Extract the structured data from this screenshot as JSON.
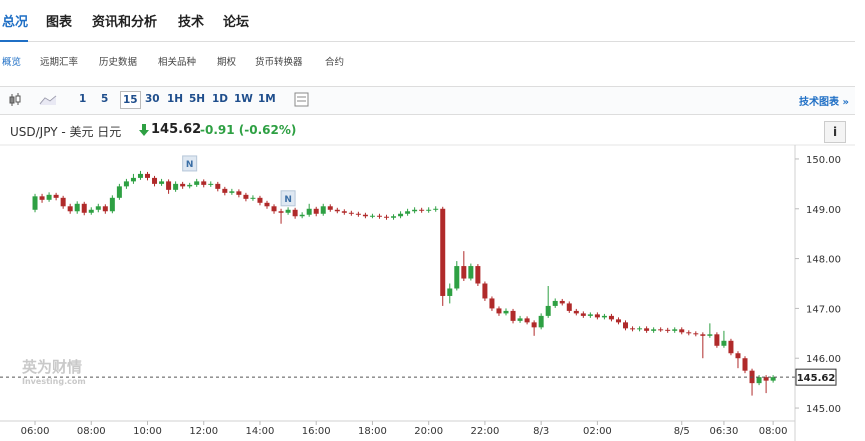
{
  "nav": {
    "tabs": [
      "总况",
      "图表",
      "资讯和分析",
      "技术",
      "论坛"
    ],
    "subtabs": [
      "概览",
      "远期汇率",
      "历史数据",
      "相关品种",
      "期权",
      "货币转换器",
      "合约"
    ]
  },
  "toolbar": {
    "intervals": [
      "1",
      "5",
      "15",
      "30",
      "1H",
      "5H",
      "1D",
      "1W",
      "1M"
    ],
    "link": "技术图表 »",
    "info": "i"
  },
  "quote": {
    "instrument": "USD/JPY - 美元 日元",
    "price": "145.62",
    "change": "-0.91 (-0.62%)"
  },
  "chart_data": {
    "type": "candlestick",
    "up_color": "#2ea043",
    "down_color": "#b02a2a",
    "xlim": [
      -3.56,
      107.4
    ],
    "ylim": [
      144.76,
      150.22
    ],
    "yticks": [
      {
        "value": 150,
        "label": "150.00"
      },
      {
        "value": 149,
        "label": "149.00"
      },
      {
        "value": 148,
        "label": "148.00"
      },
      {
        "value": 147,
        "label": "147.00"
      },
      {
        "value": 146,
        "label": "146.00"
      },
      {
        "value": 145,
        "label": "145.00"
      }
    ],
    "xticks": [
      {
        "value": 0,
        "label": "06:00"
      },
      {
        "value": 8,
        "label": "08:00"
      },
      {
        "value": 16,
        "label": "10:00"
      },
      {
        "value": 24,
        "label": "12:00"
      },
      {
        "value": 32,
        "label": "14:00"
      },
      {
        "value": 40,
        "label": "16:00"
      },
      {
        "value": 48,
        "label": "18:00"
      },
      {
        "value": 56,
        "label": "20:00"
      },
      {
        "value": 64,
        "label": "22:00"
      },
      {
        "value": 72,
        "label": "8/3"
      },
      {
        "value": 80,
        "label": "02:00"
      },
      {
        "value": 92,
        "label": "8/5"
      },
      {
        "value": 98,
        "label": "06:30"
      },
      {
        "value": 105,
        "label": "08:00"
      }
    ],
    "last_price": 145.62,
    "annotations": [
      "N",
      "N"
    ],
    "watermark": [
      "英为财情",
      "Investing.com"
    ],
    "candles": [
      [
        148.98,
        149.3,
        148.93,
        149.25
      ],
      [
        149.25,
        149.3,
        149.12,
        149.18
      ],
      [
        149.18,
        149.33,
        149.14,
        149.28
      ],
      [
        149.28,
        149.32,
        149.17,
        149.22
      ],
      [
        149.22,
        149.26,
        149.0,
        149.05
      ],
      [
        149.05,
        149.1,
        148.9,
        148.95
      ],
      [
        148.95,
        149.15,
        148.9,
        149.1
      ],
      [
        149.1,
        149.14,
        148.87,
        148.92
      ],
      [
        148.92,
        149.03,
        148.88,
        148.98
      ],
      [
        148.98,
        149.1,
        148.93,
        149.05
      ],
      [
        149.05,
        149.09,
        148.9,
        148.95
      ],
      [
        148.95,
        149.27,
        148.91,
        149.22
      ],
      [
        149.22,
        149.5,
        149.18,
        149.45
      ],
      [
        149.45,
        149.6,
        149.4,
        149.55
      ],
      [
        149.55,
        149.7,
        149.5,
        149.62
      ],
      [
        149.62,
        149.76,
        149.58,
        149.7
      ],
      [
        149.7,
        149.74,
        149.57,
        149.62
      ],
      [
        149.62,
        149.66,
        149.45,
        149.5
      ],
      [
        149.5,
        149.6,
        149.46,
        149.55
      ],
      [
        149.55,
        149.59,
        149.3,
        149.38
      ],
      [
        149.38,
        149.55,
        149.34,
        149.5
      ],
      [
        149.5,
        149.54,
        149.4,
        149.45
      ],
      [
        149.45,
        149.52,
        149.41,
        149.48
      ],
      [
        149.48,
        149.6,
        149.44,
        149.55
      ],
      [
        149.55,
        149.59,
        149.43,
        149.48
      ],
      [
        149.48,
        149.55,
        149.44,
        149.5
      ],
      [
        149.5,
        149.54,
        149.35,
        149.4
      ],
      [
        149.4,
        149.44,
        149.27,
        149.32
      ],
      [
        149.32,
        149.4,
        149.28,
        149.35
      ],
      [
        149.35,
        149.39,
        149.23,
        149.28
      ],
      [
        149.28,
        149.32,
        149.15,
        149.2
      ],
      [
        149.2,
        149.27,
        149.16,
        149.22
      ],
      [
        149.22,
        149.26,
        149.07,
        149.12
      ],
      [
        149.12,
        149.16,
        149.0,
        149.05
      ],
      [
        149.05,
        149.09,
        148.9,
        148.95
      ],
      [
        148.95,
        149.0,
        148.7,
        148.92
      ],
      [
        148.92,
        149.03,
        148.88,
        148.98
      ],
      [
        148.98,
        149.02,
        148.8,
        148.85
      ],
      [
        148.85,
        148.93,
        148.81,
        148.88
      ],
      [
        148.88,
        149.1,
        148.84,
        149.0
      ],
      [
        149.0,
        149.04,
        148.85,
        148.9
      ],
      [
        148.9,
        149.1,
        148.86,
        149.05
      ],
      [
        149.05,
        149.09,
        148.94,
        148.98
      ],
      [
        148.98,
        149.02,
        148.91,
        148.95
      ],
      [
        148.95,
        148.99,
        148.88,
        148.92
      ],
      [
        148.92,
        148.96,
        148.86,
        148.9
      ],
      [
        148.9,
        148.94,
        148.84,
        148.88
      ],
      [
        148.88,
        148.92,
        148.81,
        148.85
      ],
      [
        148.85,
        148.9,
        148.81,
        148.86
      ],
      [
        148.86,
        148.9,
        148.8,
        148.84
      ],
      [
        148.84,
        148.88,
        148.78,
        148.82
      ],
      [
        148.82,
        148.89,
        148.78,
        148.85
      ],
      [
        148.85,
        148.95,
        148.81,
        148.9
      ],
      [
        148.9,
        149.0,
        148.86,
        148.95
      ],
      [
        148.95,
        149.03,
        148.91,
        148.98
      ],
      [
        148.98,
        149.02,
        148.92,
        148.96
      ],
      [
        148.96,
        149.03,
        148.92,
        148.98
      ],
      [
        148.98,
        149.05,
        148.94,
        149.0
      ],
      [
        149.0,
        149.04,
        147.05,
        147.25
      ],
      [
        147.25,
        147.5,
        147.1,
        147.4
      ],
      [
        147.4,
        147.95,
        147.36,
        147.85
      ],
      [
        147.85,
        148.15,
        147.55,
        147.6
      ],
      [
        147.6,
        147.9,
        147.56,
        147.85
      ],
      [
        147.85,
        147.89,
        147.45,
        147.5
      ],
      [
        147.5,
        147.54,
        147.15,
        147.2
      ],
      [
        147.2,
        147.24,
        146.95,
        147.0
      ],
      [
        147.0,
        147.04,
        146.85,
        146.9
      ],
      [
        146.9,
        147.0,
        146.86,
        146.95
      ],
      [
        146.95,
        146.99,
        146.7,
        146.75
      ],
      [
        146.75,
        146.85,
        146.71,
        146.8
      ],
      [
        146.8,
        146.84,
        146.68,
        146.72
      ],
      [
        146.72,
        146.76,
        146.45,
        146.62
      ],
      [
        146.62,
        146.9,
        146.58,
        146.85
      ],
      [
        146.85,
        147.45,
        146.81,
        147.05
      ],
      [
        147.05,
        147.2,
        147.01,
        147.15
      ],
      [
        147.15,
        147.19,
        147.06,
        147.1
      ],
      [
        147.1,
        147.14,
        146.91,
        146.95
      ],
      [
        146.95,
        146.99,
        146.86,
        146.9
      ],
      [
        146.9,
        146.94,
        146.81,
        146.85
      ],
      [
        146.85,
        146.92,
        146.81,
        146.88
      ],
      [
        146.88,
        146.92,
        146.78,
        146.82
      ],
      [
        146.82,
        146.89,
        146.78,
        146.85
      ],
      [
        146.85,
        146.89,
        146.74,
        146.78
      ],
      [
        146.78,
        146.82,
        146.68,
        146.72
      ],
      [
        146.72,
        146.76,
        146.56,
        146.6
      ],
      [
        146.6,
        146.64,
        146.54,
        146.58
      ],
      [
        146.58,
        146.64,
        146.54,
        146.6
      ],
      [
        146.6,
        146.64,
        146.51,
        146.55
      ],
      [
        146.55,
        146.62,
        146.51,
        146.58
      ],
      [
        146.58,
        146.62,
        146.53,
        146.57
      ],
      [
        146.57,
        146.61,
        146.51,
        146.55
      ],
      [
        146.55,
        146.62,
        146.51,
        146.58
      ],
      [
        146.58,
        146.62,
        146.48,
        146.52
      ],
      [
        146.52,
        146.56,
        146.46,
        146.5
      ],
      [
        146.5,
        146.54,
        146.44,
        146.48
      ],
      [
        146.48,
        146.52,
        146.0,
        146.45
      ],
      [
        146.45,
        146.7,
        146.41,
        146.48
      ],
      [
        146.48,
        146.52,
        146.21,
        146.25
      ],
      [
        146.25,
        146.55,
        146.21,
        146.35
      ],
      [
        146.35,
        146.39,
        146.06,
        146.1
      ],
      [
        146.1,
        146.14,
        145.8,
        146.0
      ],
      [
        146.0,
        146.04,
        145.7,
        145.75
      ],
      [
        145.75,
        145.79,
        145.25,
        145.5
      ],
      [
        145.5,
        145.66,
        145.46,
        145.62
      ],
      [
        145.62,
        145.66,
        145.3,
        145.55
      ],
      [
        145.55,
        145.66,
        145.51,
        145.62
      ]
    ]
  }
}
